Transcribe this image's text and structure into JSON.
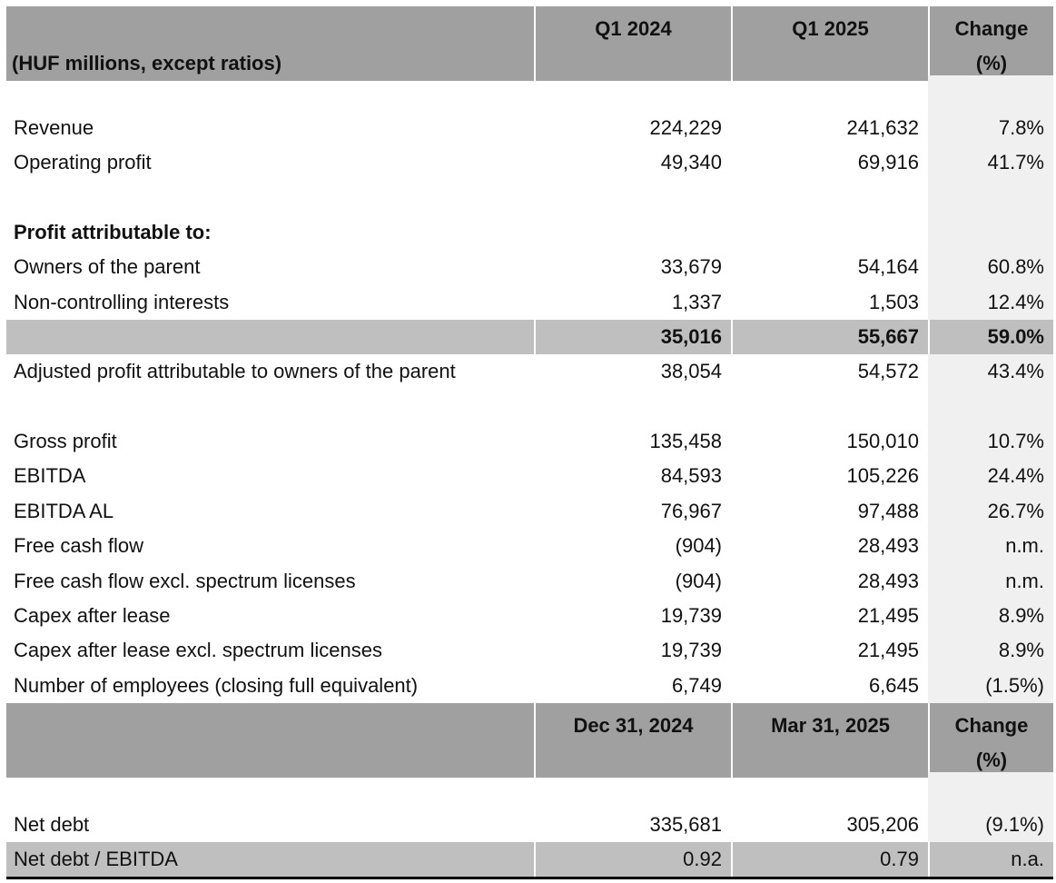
{
  "header1": {
    "unit_label": "(HUF millions, except ratios)",
    "col1": "Q1 2024",
    "col2": "Q1 2025",
    "col3_line1": "Change",
    "col3_line2": "(%)"
  },
  "rows1": [
    {
      "label": "",
      "v1": "",
      "v2": "",
      "chg": ""
    },
    {
      "label": "Revenue",
      "v1": "224,229",
      "v2": "241,632",
      "chg": "7.8%"
    },
    {
      "label": "Operating profit",
      "v1": "49,340",
      "v2": "69,916",
      "chg": "41.7%"
    },
    {
      "label": "",
      "v1": "",
      "v2": "",
      "chg": ""
    },
    {
      "label": "Profit attributable to:",
      "v1": "",
      "v2": "",
      "chg": "",
      "style": "bold"
    },
    {
      "label": "Owners of the parent",
      "v1": "33,679",
      "v2": "54,164",
      "chg": "60.8%"
    },
    {
      "label": "Non-controlling interests",
      "v1": "1,337",
      "v2": "1,503",
      "chg": "12.4%"
    },
    {
      "label": "",
      "v1": "35,016",
      "v2": "55,667",
      "chg": "59.0%",
      "style": "total bold"
    },
    {
      "label": "Adjusted profit attributable to owners of the parent",
      "v1": "38,054",
      "v2": "54,572",
      "chg": "43.4%"
    },
    {
      "label": "",
      "v1": "",
      "v2": "",
      "chg": ""
    },
    {
      "label": "Gross profit",
      "v1": "135,458",
      "v2": "150,010",
      "chg": "10.7%"
    },
    {
      "label": "EBITDA",
      "v1": "84,593",
      "v2": "105,226",
      "chg": "24.4%"
    },
    {
      "label": "EBITDA AL",
      "v1": "76,967",
      "v2": "97,488",
      "chg": "26.7%"
    },
    {
      "label": "Free cash flow",
      "v1": "(904)",
      "v2": "28,493",
      "chg": "n.m."
    },
    {
      "label": "Free cash flow excl. spectrum licenses",
      "v1": "(904)",
      "v2": "28,493",
      "chg": "n.m."
    },
    {
      "label": "Capex after lease",
      "v1": "19,739",
      "v2": "21,495",
      "chg": "8.9%"
    },
    {
      "label": "Capex after lease excl. spectrum licenses",
      "v1": "19,739",
      "v2": "21,495",
      "chg": "8.9%"
    },
    {
      "label": "Number of employees (closing full equivalent)",
      "v1": "6,749",
      "v2": "6,645",
      "chg": "(1.5%)"
    }
  ],
  "header2": {
    "unit_label": "",
    "col1": "Dec 31, 2024",
    "col2": "Mar 31, 2025",
    "col3_line1": "Change",
    "col3_line2": "(%)"
  },
  "rows2": [
    {
      "label": "",
      "v1": "",
      "v2": "",
      "chg": ""
    },
    {
      "label": "Net debt",
      "v1": "335,681",
      "v2": "305,206",
      "chg": "(9.1%)"
    },
    {
      "label": "Net debt / EBITDA",
      "v1": "0.92",
      "v2": "0.79",
      "chg": "n.a.",
      "style": "total"
    }
  ],
  "colors": {
    "header_bg": "#a0a0a0",
    "total_bg": "#bfbfbf",
    "change_col_bg": "#f0f0f0"
  }
}
